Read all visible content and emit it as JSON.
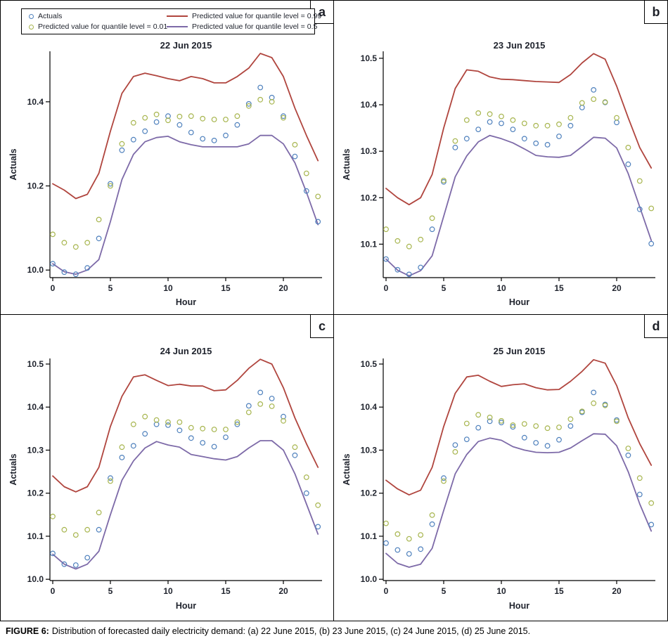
{
  "figure": {
    "caption_label": "FIGURE 6:",
    "caption_text": "Distribution of forecasted daily electricity demand: (a) 22 June 2015, (b) 23 June 2015, (c) 24 June 2015, (d) 25 June 2015."
  },
  "colors": {
    "actuals": "#4f81bd",
    "quantile_001": "#a7b54e",
    "quantile_099": "#b0453e",
    "quantile_05": "#7d6aa8",
    "axis": "#000000",
    "text": "#20242e",
    "border": "#000000"
  },
  "legend": {
    "items": [
      {
        "label": "Actuals",
        "swatch": "circle-marker-icon",
        "color": "#4f81bd"
      },
      {
        "label": "Predicted value for quantile level = 0.99",
        "swatch": "line-icon",
        "color": "#b0453e"
      },
      {
        "label": "Predicted value for quantile level = 0.01",
        "swatch": "circle-marker-icon",
        "color": "#a7b54e"
      },
      {
        "label": "Predicted value for quantile level = 0.5",
        "swatch": "line-icon",
        "color": "#7d6aa8"
      }
    ]
  },
  "panels": {
    "a": "a",
    "b": "b",
    "c": "c",
    "d": "d"
  },
  "chart_data": [
    {
      "type": "line",
      "panel": "a",
      "title": "22 Jun 2015",
      "xlabel": "Hour",
      "ylabel": "Actuals",
      "x": [
        0,
        1,
        2,
        3,
        4,
        5,
        6,
        7,
        8,
        9,
        10,
        11,
        12,
        13,
        14,
        15,
        16,
        17,
        18,
        19,
        20,
        21,
        22,
        23
      ],
      "xticks": [
        0,
        5,
        10,
        15,
        20
      ],
      "yticks": [
        10.0,
        10.2,
        10.4
      ],
      "ylim": [
        9.982,
        10.52
      ],
      "grid": false,
      "legend_position": "top-left",
      "series": [
        {
          "name": "Predicted value for quantile level = 0.99",
          "style": "line",
          "color": "#b0453e",
          "values": [
            10.205,
            10.19,
            10.17,
            10.18,
            10.23,
            10.33,
            10.42,
            10.46,
            10.468,
            10.462,
            10.455,
            10.45,
            10.46,
            10.455,
            10.445,
            10.445,
            10.46,
            10.48,
            10.515,
            10.505,
            10.46,
            10.385,
            10.32,
            10.26
          ]
        },
        {
          "name": "Predicted value for quantile level = 0.5",
          "style": "line",
          "color": "#7d6aa8",
          "values": [
            10.015,
            9.996,
            9.99,
            10.0,
            10.025,
            10.115,
            10.215,
            10.275,
            10.305,
            10.315,
            10.318,
            10.305,
            10.298,
            10.293,
            10.293,
            10.293,
            10.293,
            10.3,
            10.32,
            10.32,
            10.3,
            10.255,
            10.185,
            10.108
          ]
        },
        {
          "name": "Actuals",
          "style": "marker",
          "color": "#4f81bd",
          "values": [
            10.015,
            9.995,
            9.99,
            10.005,
            10.075,
            10.205,
            10.285,
            10.31,
            10.33,
            10.352,
            10.366,
            10.345,
            10.327,
            10.312,
            10.308,
            10.32,
            10.345,
            10.395,
            10.434,
            10.41,
            10.366,
            10.27,
            10.188,
            10.115
          ]
        },
        {
          "name": "Predicted value for quantile level = 0.01",
          "style": "marker",
          "color": "#a7b54e",
          "values": [
            10.085,
            10.065,
            10.055,
            10.065,
            10.12,
            10.2,
            10.3,
            10.35,
            10.362,
            10.37,
            10.356,
            10.365,
            10.366,
            10.36,
            10.358,
            10.358,
            10.366,
            10.39,
            10.405,
            10.4,
            10.362,
            10.298,
            10.23,
            10.175
          ]
        }
      ]
    },
    {
      "type": "line",
      "panel": "b",
      "title": "23 Jun 2015",
      "xlabel": "Hour",
      "ylabel": "Actuals",
      "x": [
        0,
        1,
        2,
        3,
        4,
        5,
        6,
        7,
        8,
        9,
        10,
        11,
        12,
        13,
        14,
        15,
        16,
        17,
        18,
        19,
        20,
        21,
        22,
        23
      ],
      "xticks": [
        0,
        5,
        10,
        15,
        20
      ],
      "yticks": [
        10.1,
        10.2,
        10.3,
        10.4,
        10.5
      ],
      "ylim": [
        10.028,
        10.515
      ],
      "grid": false,
      "series": [
        {
          "name": "Predicted value for quantile level = 0.99",
          "style": "line",
          "color": "#b0453e",
          "values": [
            10.22,
            10.2,
            10.185,
            10.2,
            10.25,
            10.35,
            10.435,
            10.475,
            10.472,
            10.46,
            10.455,
            10.454,
            10.452,
            10.45,
            10.449,
            10.448,
            10.465,
            10.49,
            10.51,
            10.498,
            10.44,
            10.372,
            10.308,
            10.264
          ]
        },
        {
          "name": "Predicted value for quantile level = 0.5",
          "style": "line",
          "color": "#7d6aa8",
          "values": [
            10.068,
            10.044,
            10.032,
            10.043,
            10.075,
            10.16,
            10.245,
            10.29,
            10.32,
            10.334,
            10.327,
            10.318,
            10.305,
            10.291,
            10.288,
            10.287,
            10.291,
            10.31,
            10.33,
            10.328,
            10.307,
            10.252,
            10.18,
            10.108
          ]
        },
        {
          "name": "Actuals",
          "style": "marker",
          "color": "#4f81bd",
          "values": [
            10.068,
            10.045,
            10.035,
            10.05,
            10.132,
            10.234,
            10.308,
            10.327,
            10.347,
            10.363,
            10.36,
            10.347,
            10.327,
            10.317,
            10.314,
            10.332,
            10.355,
            10.394,
            10.432,
            10.405,
            10.362,
            10.272,
            10.175,
            10.101
          ]
        },
        {
          "name": "Predicted value for quantile level = 0.01",
          "style": "marker",
          "color": "#a7b54e",
          "values": [
            10.132,
            10.107,
            10.095,
            10.11,
            10.156,
            10.237,
            10.322,
            10.367,
            10.382,
            10.38,
            10.375,
            10.367,
            10.36,
            10.355,
            10.355,
            10.358,
            10.372,
            10.404,
            10.412,
            10.406,
            10.372,
            10.308,
            10.236,
            10.177
          ]
        }
      ]
    },
    {
      "type": "line",
      "panel": "c",
      "title": "24 Jun 2015",
      "xlabel": "Hour",
      "ylabel": "Actuals",
      "x": [
        0,
        1,
        2,
        3,
        4,
        5,
        6,
        7,
        8,
        9,
        10,
        11,
        12,
        13,
        14,
        15,
        16,
        17,
        18,
        19,
        20,
        21,
        22,
        23
      ],
      "xticks": [
        0,
        5,
        10,
        15,
        20
      ],
      "yticks": [
        10.0,
        10.1,
        10.2,
        10.3,
        10.4,
        10.5
      ],
      "ylim": [
        9.997,
        10.513
      ],
      "grid": false,
      "series": [
        {
          "name": "Predicted value for quantile level = 0.99",
          "style": "line",
          "color": "#b0453e",
          "values": [
            10.24,
            10.215,
            10.203,
            10.215,
            10.26,
            10.355,
            10.425,
            10.47,
            10.475,
            10.462,
            10.45,
            10.453,
            10.449,
            10.449,
            10.438,
            10.44,
            10.462,
            10.49,
            10.511,
            10.5,
            10.445,
            10.375,
            10.315,
            10.26
          ]
        },
        {
          "name": "Predicted value for quantile level = 0.5",
          "style": "line",
          "color": "#7d6aa8",
          "values": [
            10.058,
            10.035,
            10.024,
            10.035,
            10.065,
            10.15,
            10.23,
            10.275,
            10.305,
            10.32,
            10.312,
            10.307,
            10.29,
            10.285,
            10.28,
            10.277,
            10.285,
            10.305,
            10.322,
            10.322,
            10.3,
            10.245,
            10.175,
            10.105
          ]
        },
        {
          "name": "Actuals",
          "style": "marker",
          "color": "#4f81bd",
          "values": [
            10.06,
            10.035,
            10.033,
            10.05,
            10.115,
            10.235,
            10.283,
            10.31,
            10.338,
            10.36,
            10.358,
            10.346,
            10.328,
            10.317,
            10.308,
            10.33,
            10.36,
            10.403,
            10.434,
            10.42,
            10.378,
            10.288,
            10.2,
            10.122
          ]
        },
        {
          "name": "Predicted value for quantile level = 0.01",
          "style": "marker",
          "color": "#a7b54e",
          "values": [
            10.146,
            10.115,
            10.103,
            10.115,
            10.155,
            10.228,
            10.307,
            10.36,
            10.378,
            10.37,
            10.365,
            10.365,
            10.352,
            10.35,
            10.348,
            10.348,
            10.365,
            10.388,
            10.407,
            10.402,
            10.368,
            10.307,
            10.237,
            10.172
          ]
        }
      ]
    },
    {
      "type": "line",
      "panel": "d",
      "title": "25 Jun 2015",
      "xlabel": "Hour",
      "ylabel": "Actuals",
      "x": [
        0,
        1,
        2,
        3,
        4,
        5,
        6,
        7,
        8,
        9,
        10,
        11,
        12,
        13,
        14,
        15,
        16,
        17,
        18,
        19,
        20,
        21,
        22,
        23
      ],
      "xticks": [
        0,
        5,
        10,
        15,
        20
      ],
      "yticks": [
        10.0,
        10.1,
        10.2,
        10.3,
        10.4,
        10.5
      ],
      "ylim": [
        9.997,
        10.513
      ],
      "grid": false,
      "series": [
        {
          "name": "Predicted value for quantile level = 0.99",
          "style": "line",
          "color": "#b0453e",
          "values": [
            10.23,
            10.21,
            10.196,
            10.207,
            10.26,
            10.355,
            10.432,
            10.47,
            10.474,
            10.46,
            10.448,
            10.452,
            10.454,
            10.445,
            10.44,
            10.441,
            10.46,
            10.483,
            10.51,
            10.502,
            10.45,
            10.375,
            10.315,
            10.265
          ]
        },
        {
          "name": "Predicted value for quantile level = 0.5",
          "style": "line",
          "color": "#7d6aa8",
          "values": [
            10.06,
            10.037,
            10.028,
            10.035,
            10.072,
            10.16,
            10.245,
            10.29,
            10.32,
            10.328,
            10.323,
            10.308,
            10.3,
            10.295,
            10.294,
            10.295,
            10.305,
            10.322,
            10.338,
            10.337,
            10.31,
            10.25,
            10.175,
            10.112
          ]
        },
        {
          "name": "Actuals",
          "style": "marker",
          "color": "#4f81bd",
          "values": [
            10.084,
            10.068,
            10.059,
            10.07,
            10.128,
            10.235,
            10.312,
            10.325,
            10.352,
            10.367,
            10.364,
            10.354,
            10.329,
            10.317,
            10.31,
            10.324,
            10.356,
            10.388,
            10.434,
            10.406,
            10.37,
            10.288,
            10.197,
            10.127
          ]
        },
        {
          "name": "Predicted value for quantile level = 0.01",
          "style": "marker",
          "color": "#a7b54e",
          "values": [
            10.13,
            10.105,
            10.094,
            10.103,
            10.149,
            10.228,
            10.296,
            10.362,
            10.382,
            10.376,
            10.368,
            10.358,
            10.361,
            10.356,
            10.351,
            10.353,
            10.372,
            10.39,
            10.409,
            10.404,
            10.367,
            10.304,
            10.235,
            10.177
          ]
        }
      ]
    }
  ]
}
